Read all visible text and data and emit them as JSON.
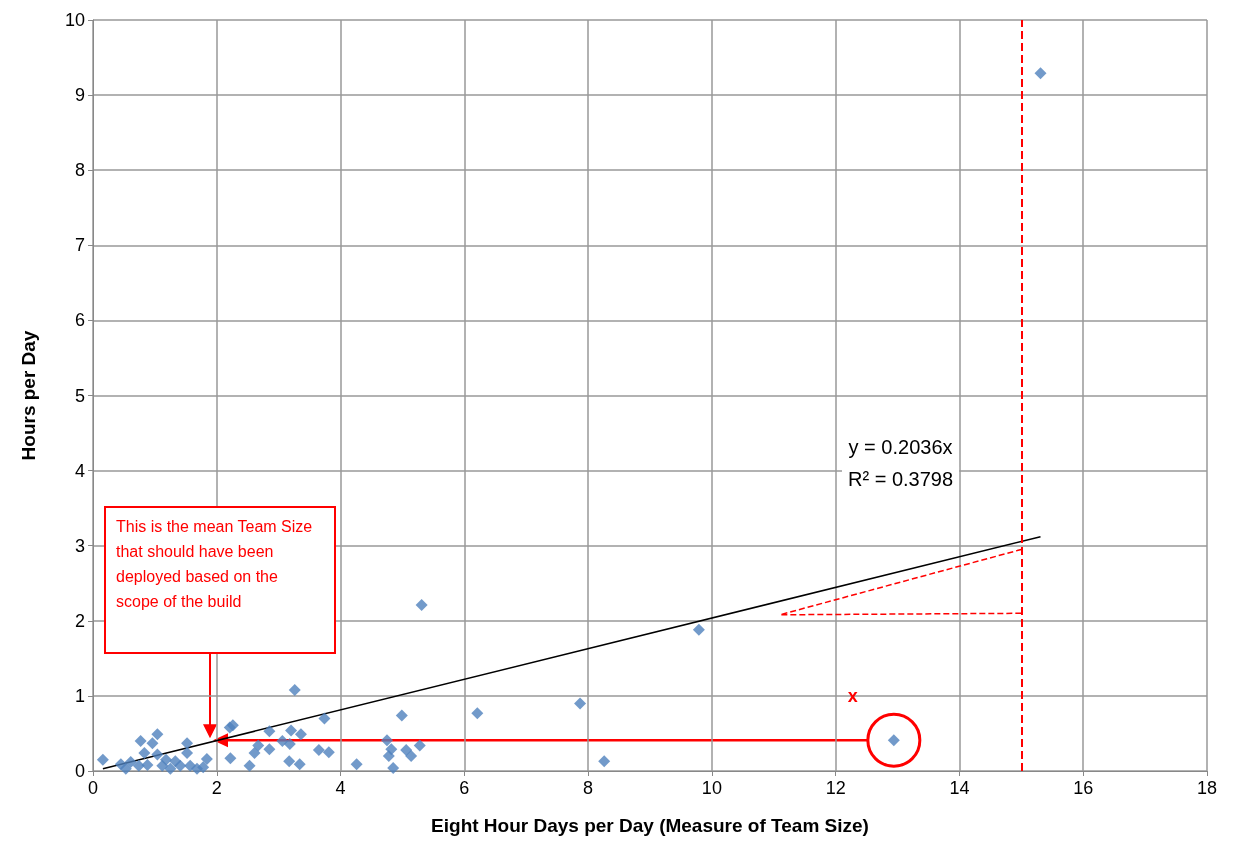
{
  "chart_data": {
    "type": "scatter",
    "xlabel": "Eight Hour Days per Day (Measure of Team Size)",
    "ylabel": "Hours per Day",
    "x": [
      0.16,
      0.45,
      0.53,
      0.61,
      0.74,
      0.77,
      0.83,
      0.88,
      0.96,
      1.04,
      1.04,
      1.12,
      1.18,
      1.25,
      1.33,
      1.41,
      1.52,
      1.52,
      1.57,
      1.68,
      1.78,
      1.84,
      2.21,
      2.26,
      2.22,
      2.53,
      2.61,
      2.67,
      2.85,
      2.85,
      3.06,
      3.18,
      3.2,
      3.17,
      3.26,
      3.34,
      3.36,
      3.65,
      3.74,
      3.81,
      4.26,
      4.75,
      4.78,
      4.82,
      4.85,
      4.99,
      5.06,
      5.14,
      5.28,
      5.31,
      6.21,
      7.87,
      8.26,
      9.79,
      12.94,
      15.31
    ],
    "series": [
      {
        "color": "#4f81bd",
        "marker": "diamond",
        "values": [
          0.15,
          0.09,
          0.03,
          0.12,
          0.07,
          0.4,
          0.24,
          0.08,
          0.37,
          0.49,
          0.22,
          0.07,
          0.15,
          0.03,
          0.13,
          0.07,
          0.37,
          0.24,
          0.07,
          0.03,
          0.05,
          0.16,
          0.58,
          0.61,
          0.17,
          0.07,
          0.24,
          0.34,
          0.53,
          0.29,
          0.4,
          0.36,
          0.54,
          0.13,
          1.08,
          0.09,
          0.49,
          0.28,
          0.7,
          0.25,
          0.09,
          0.41,
          0.2,
          0.29,
          0.04,
          0.74,
          0.28,
          0.2,
          0.34,
          2.21,
          0.77,
          0.9,
          0.13,
          1.88,
          0.41,
          9.29
        ]
      },
      {
        "type": "line",
        "color": "#000000",
        "marker": "none",
        "line_style": "solid",
        "x": [
          0.16,
          15.31
        ],
        "values": [
          0.03,
          3.12
        ]
      },
      {
        "type": "line",
        "color": "#ff0000",
        "marker": "none",
        "line_style": "dashed",
        "x": [
          15,
          11.1,
          15
        ],
        "values": [
          2.1,
          2.08,
          2.95
        ]
      }
    ],
    "xlim": [
      0,
      18
    ],
    "xticks": [
      0,
      2,
      4,
      6,
      8,
      10,
      12,
      14,
      16,
      18
    ],
    "ylim": [
      0,
      10
    ],
    "yticks": [
      0,
      1,
      2,
      3,
      4,
      5,
      6,
      7,
      8,
      9,
      10
    ],
    "grid": true,
    "ref_lines": [
      {
        "axis": "x",
        "value": 15,
        "color": "#ff0000",
        "line_style": "dashed"
      }
    ],
    "annotations": [
      "y = 0.2036x",
      "R² = 0.3798",
      "This is the mean Team Size that should have been deployed based on the scope of the build",
      {
        "text": "x",
        "x": 12.94,
        "y": 0.41
      }
    ]
  }
}
